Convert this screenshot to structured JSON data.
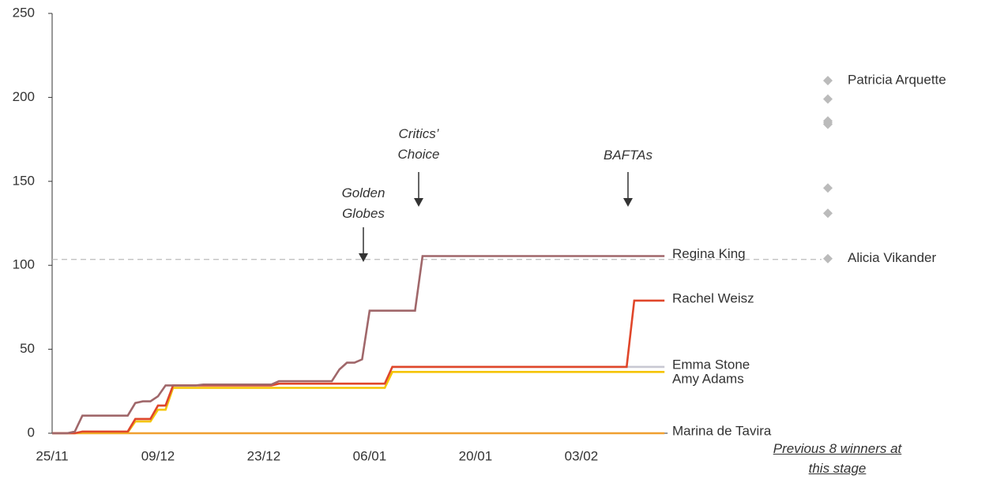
{
  "chart_data": {
    "type": "line",
    "categories": [
      "25/11",
      null,
      null,
      null,
      null,
      null,
      null,
      null,
      null,
      null,
      null,
      null,
      null,
      null,
      "09/12",
      null,
      null,
      null,
      null,
      null,
      null,
      null,
      null,
      null,
      null,
      null,
      null,
      null,
      "23/12",
      null,
      null,
      null,
      null,
      null,
      null,
      null,
      null,
      null,
      null,
      null,
      null,
      null,
      "06/01",
      null,
      null,
      null,
      null,
      null,
      null,
      null,
      null,
      null,
      null,
      null,
      null,
      null,
      "20/01",
      null,
      null,
      null,
      null,
      null,
      null,
      null,
      null,
      null,
      null,
      null,
      null,
      null,
      "03/02",
      null,
      null,
      null,
      null,
      null,
      null,
      null,
      null,
      null,
      null,
      null
    ],
    "series": [
      {
        "name": "Marina de Tavira",
        "color": "#f0a030",
        "values": [
          0,
          0,
          0,
          0,
          0,
          0,
          0,
          0,
          0,
          0,
          0,
          0,
          0,
          0,
          0,
          0,
          0,
          0,
          0,
          0,
          0,
          0,
          0,
          0,
          0,
          0,
          0,
          0,
          0,
          0,
          0,
          0,
          0,
          0,
          0,
          0,
          0,
          0,
          0,
          0,
          0,
          0,
          0,
          0,
          0,
          0,
          0,
          0,
          0,
          0,
          0,
          0,
          0,
          0,
          0,
          0,
          0,
          0,
          0,
          0,
          0,
          0,
          0,
          0,
          0,
          0,
          0,
          0,
          0,
          0,
          0,
          0,
          0,
          0,
          0,
          0,
          0,
          0,
          0,
          0,
          0,
          0
        ]
      },
      {
        "name": "Amy Adams",
        "color": "#f5c400",
        "values": [
          0,
          0,
          0,
          0,
          0.5,
          0.5,
          0.5,
          0.5,
          0.5,
          0.5,
          0.5,
          7,
          7,
          7,
          14,
          14,
          27,
          27,
          27,
          27,
          27,
          27,
          27,
          27,
          27,
          27,
          27,
          27,
          27,
          27,
          27,
          27,
          27,
          27,
          27,
          27,
          27,
          27,
          27,
          27,
          27,
          27,
          27,
          27,
          27,
          36.5,
          36.5,
          36.5,
          36.5,
          36.5,
          36.5,
          36.5,
          36.5,
          36.5,
          36.5,
          36.5,
          36.5,
          36.5,
          36.5,
          36.5,
          36.5,
          36.5,
          36.5,
          36.5,
          36.5,
          36.5,
          36.5,
          36.5,
          36.5,
          36.5,
          36.5,
          36.5,
          36.5,
          36.5,
          36.5,
          36.5,
          36.5,
          36.5,
          36.5,
          36.5,
          36.5,
          36.5
        ]
      },
      {
        "name": "Emma Stone",
        "color": "#c8c8d2",
        "values": [
          0,
          0,
          0,
          0,
          1,
          1,
          1,
          1,
          1,
          1,
          1,
          8.5,
          8.5,
          8.5,
          16.5,
          16.5,
          28.5,
          28.5,
          28.5,
          28.5,
          28.5,
          28.5,
          28.5,
          28.5,
          28.5,
          28.5,
          28.5,
          28.5,
          28.5,
          28.5,
          29.5,
          29.5,
          29.5,
          29.5,
          29.5,
          29.5,
          29.5,
          29.5,
          29.5,
          29.5,
          29.5,
          29.5,
          29.5,
          29.5,
          29.5,
          39.5,
          39.5,
          39.5,
          39.5,
          39.5,
          39.5,
          39.5,
          39.5,
          39.5,
          39.5,
          39.5,
          39.5,
          39.5,
          39.5,
          39.5,
          39.5,
          39.5,
          39.5,
          39.5,
          39.5,
          39.5,
          39.5,
          39.5,
          39.5,
          39.5,
          39.5,
          39.5,
          39.5,
          39.5,
          39.5,
          39.5,
          39.5,
          39.5,
          39.5,
          39.5,
          39.5,
          39.5
        ]
      },
      {
        "name": "Rachel Weisz",
        "color": "#e0462a",
        "values": [
          0,
          0,
          0,
          0,
          1,
          1,
          1,
          1,
          1,
          1,
          1,
          8.5,
          8.5,
          8.5,
          16.5,
          16.5,
          28.5,
          28.5,
          28.5,
          28.5,
          28.5,
          28.5,
          28.5,
          28.5,
          28.5,
          28.5,
          28.5,
          28.5,
          28.5,
          28.5,
          29.5,
          29.5,
          29.5,
          29.5,
          29.5,
          29.5,
          29.5,
          29.5,
          29.5,
          29.5,
          29.5,
          29.5,
          29.5,
          29.5,
          29.5,
          39.5,
          39.5,
          39.5,
          39.5,
          39.5,
          39.5,
          39.5,
          39.5,
          39.5,
          39.5,
          39.5,
          39.5,
          39.5,
          39.5,
          39.5,
          39.5,
          39.5,
          39.5,
          39.5,
          39.5,
          39.5,
          39.5,
          39.5,
          39.5,
          39.5,
          39.5,
          39.5,
          39.5,
          39.5,
          39.5,
          39.5,
          39.5,
          79,
          79,
          79,
          79,
          79
        ]
      },
      {
        "name": "Regina King",
        "color": "#a0676a",
        "values": [
          0,
          0,
          0,
          1,
          10.5,
          10.5,
          10.5,
          10.5,
          10.5,
          10.5,
          10.5,
          18,
          19,
          19,
          22,
          28.5,
          28.5,
          28.5,
          28.5,
          28.5,
          29,
          29,
          29,
          29,
          29,
          29,
          29,
          29,
          29,
          29,
          31,
          31,
          31,
          31,
          31,
          31,
          31,
          31,
          38,
          42,
          42,
          44,
          73,
          73,
          73,
          73,
          73,
          73,
          73,
          105.5,
          105.5,
          105.5,
          105.5,
          105.5,
          105.5,
          105.5,
          105.5,
          105.5,
          105.5,
          105.5,
          105.5,
          105.5,
          105.5,
          105.5,
          105.5,
          105.5,
          105.5,
          105.5,
          105.5,
          105.5,
          105.5,
          105.5,
          105.5,
          105.5,
          105.5,
          105.5,
          105.5,
          105.5,
          105.5,
          105.5,
          105.5,
          105.5
        ]
      }
    ],
    "ylim": [
      0,
      250
    ],
    "yticks": [
      0,
      50,
      100,
      150,
      200,
      250
    ],
    "reference_line": 103.5,
    "annotations": [
      "Golden Globes",
      "Critics’ Choice",
      "BAFTAs"
    ],
    "previous_winners": {
      "label": "Previous 8 winners at this stage",
      "color": "#bbbbbb",
      "values": [
        210,
        199,
        186,
        185,
        184,
        146,
        131,
        104
      ],
      "names": [
        "Patricia Arquette",
        null,
        null,
        null,
        null,
        null,
        null,
        "Alicia Vikander"
      ]
    }
  }
}
